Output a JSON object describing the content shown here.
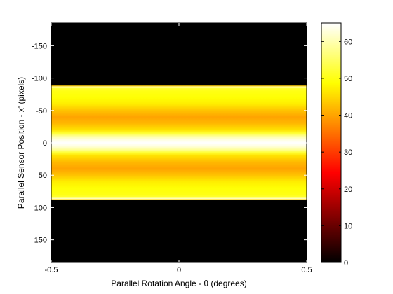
{
  "chart_data": {
    "type": "heatmap",
    "title": "",
    "xlabel": "Parallel Rotation Angle - θ (degrees)",
    "ylabel": "Parallel Sensor Position - x' (pixels)",
    "xlim": [
      -0.5,
      0.5
    ],
    "ylim": [
      185,
      -185
    ],
    "y_direction": "reverse",
    "x_ticks": [
      "-0.5",
      "0",
      "0.5"
    ],
    "y_ticks": [
      "-150",
      "-100",
      "-50",
      "0",
      "50",
      "100",
      "150"
    ],
    "colormap": "hot",
    "clim": [
      0,
      65
    ],
    "colorbar_ticks": [
      "0",
      "10",
      "20",
      "30",
      "40",
      "50",
      "60"
    ],
    "description": "Sinogram intensity is constant across rotation angle; profile varies with sensor position",
    "profile": {
      "x_prime": [
        -185,
        -89,
        -88,
        -86,
        -84,
        -80,
        -70,
        -60,
        -50,
        -40,
        -30,
        -20,
        -15,
        -10,
        -5,
        0,
        5,
        10,
        15,
        20,
        30,
        40,
        50,
        60,
        70,
        80,
        84,
        86,
        88,
        89,
        185
      ],
      "value": [
        0,
        0,
        44,
        62,
        52,
        50,
        49,
        47,
        43,
        40,
        42,
        46,
        52,
        59,
        63,
        65,
        63,
        59,
        52,
        46,
        42,
        40,
        43,
        47,
        49,
        50,
        52,
        62,
        44,
        0,
        0
      ]
    }
  }
}
